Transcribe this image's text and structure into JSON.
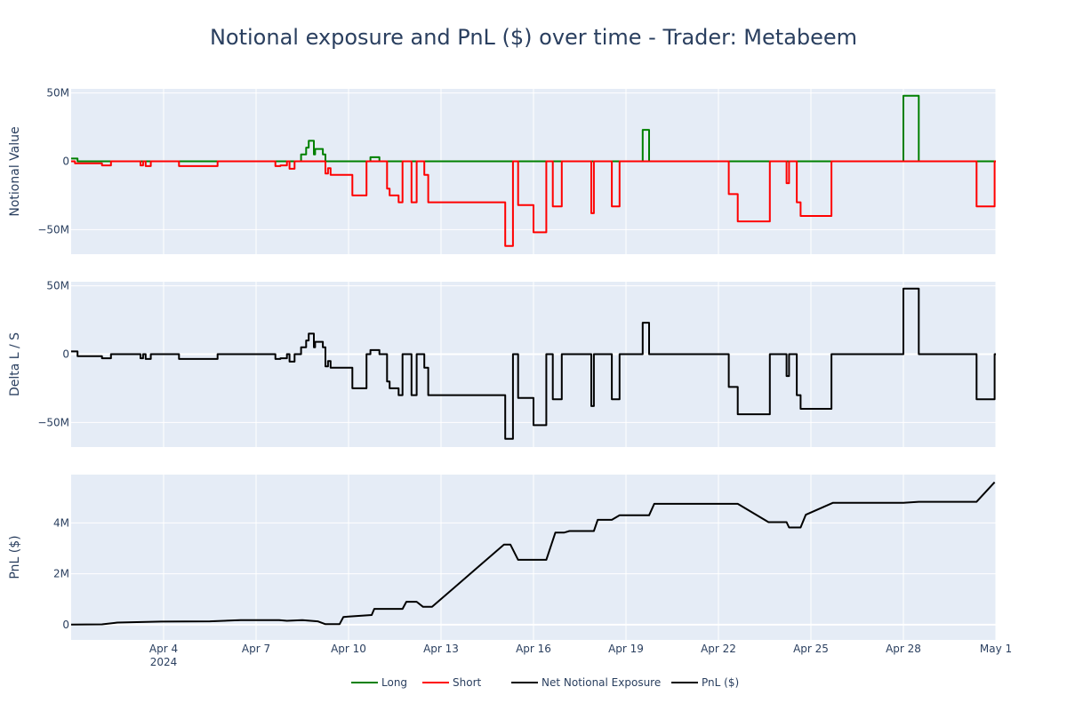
{
  "chart_data": {
    "type": "line",
    "title": "Notional exposure and PnL ($) over time - Trader: Metabeem",
    "x_range": [
      "2024-04-01T00:00",
      "2024-05-01T00:00"
    ],
    "x_ticks": [
      {
        "date": "2024-04-04",
        "label": "Apr 4",
        "sublabel": "2024"
      },
      {
        "date": "2024-04-07",
        "label": "Apr 7"
      },
      {
        "date": "2024-04-10",
        "label": "Apr 10"
      },
      {
        "date": "2024-04-13",
        "label": "Apr 13"
      },
      {
        "date": "2024-04-16",
        "label": "Apr 16"
      },
      {
        "date": "2024-04-19",
        "label": "Apr 19"
      },
      {
        "date": "2024-04-22",
        "label": "Apr 22"
      },
      {
        "date": "2024-04-25",
        "label": "Apr 25"
      },
      {
        "date": "2024-04-28",
        "label": "Apr 28"
      },
      {
        "date": "2024-05-01",
        "label": "May 1"
      }
    ],
    "grid": true,
    "legend_position": "bottom-center",
    "legend": [
      {
        "name": "Long",
        "color": "#008000"
      },
      {
        "name": "Short",
        "color": "#ff0000"
      },
      {
        "name": "Net Notional Exposure",
        "color": "#000000"
      },
      {
        "name": "PnL ($)",
        "color": "#000000"
      }
    ],
    "panels": [
      {
        "ylabel": "Notional Value",
        "ylim": [
          -68000000,
          53000000
        ],
        "y_ticks": [
          {
            "value": 50000000,
            "label": "50M"
          },
          {
            "value": 0,
            "label": "0"
          },
          {
            "value": -50000000,
            "label": "−50M"
          }
        ],
        "series": [
          {
            "name": "Long",
            "color": "#008000",
            "shape": "hv",
            "points": [
              [
                "2024-04-01T00:00",
                2000000
              ],
              [
                "2024-04-01T05:00",
                0
              ],
              [
                "2024-04-08T08:00",
                0
              ],
              [
                "2024-04-08T11:00",
                5000000
              ],
              [
                "2024-04-08T15:00",
                10000000
              ],
              [
                "2024-04-08T17:00",
                15000000
              ],
              [
                "2024-04-08T21:00",
                5000000
              ],
              [
                "2024-04-08T22:00",
                9000000
              ],
              [
                "2024-04-09T04:00",
                5000000
              ],
              [
                "2024-04-09T06:00",
                0
              ],
              [
                "2024-04-10T17:00",
                3000000
              ],
              [
                "2024-04-11T00:00",
                0
              ],
              [
                "2024-04-19T13:00",
                23000000
              ],
              [
                "2024-04-19T18:00",
                0
              ],
              [
                "2024-04-28T00:00",
                48000000
              ],
              [
                "2024-04-28T12:00",
                0
              ],
              [
                "2024-05-01T00:00",
                0
              ]
            ]
          },
          {
            "name": "Short",
            "color": "#ff0000",
            "shape": "hv",
            "points": [
              [
                "2024-04-01T00:00",
                0
              ],
              [
                "2024-04-01T03:00",
                -1500000
              ],
              [
                "2024-04-02T00:00",
                -3000000
              ],
              [
                "2024-04-02T07:00",
                0
              ],
              [
                "2024-04-03T06:00",
                -3000000
              ],
              [
                "2024-04-03T08:00",
                0
              ],
              [
                "2024-04-03T10:00",
                -3500000
              ],
              [
                "2024-04-03T14:00",
                0
              ],
              [
                "2024-04-04T12:00",
                -3500000
              ],
              [
                "2024-04-05T18:00",
                0
              ],
              [
                "2024-04-07T15:00",
                -3500000
              ],
              [
                "2024-04-07T19:00",
                -3000000
              ],
              [
                "2024-04-08T00:00",
                0
              ],
              [
                "2024-04-08T02:00",
                -5500000
              ],
              [
                "2024-04-08T06:00",
                0
              ],
              [
                "2024-04-09T06:00",
                -9000000
              ],
              [
                "2024-04-09T08:00",
                -5000000
              ],
              [
                "2024-04-09T10:00",
                -10000000
              ],
              [
                "2024-04-10T03:00",
                -25000000
              ],
              [
                "2024-04-10T14:00",
                0
              ],
              [
                "2024-04-11T06:00",
                -20000000
              ],
              [
                "2024-04-11T08:00",
                -25000000
              ],
              [
                "2024-04-11T15:00",
                -30000000
              ],
              [
                "2024-04-11T18:00",
                0
              ],
              [
                "2024-04-12T01:00",
                -30000000
              ],
              [
                "2024-04-12T05:00",
                0
              ],
              [
                "2024-04-12T11:00",
                -10000000
              ],
              [
                "2024-04-12T14:00",
                -30000000
              ],
              [
                "2024-04-15T02:00",
                -62000000
              ],
              [
                "2024-04-15T08:00",
                0
              ],
              [
                "2024-04-15T12:00",
                -32000000
              ],
              [
                "2024-04-16T00:00",
                -52000000
              ],
              [
                "2024-04-16T10:00",
                0
              ],
              [
                "2024-04-16T15:00",
                -33000000
              ],
              [
                "2024-04-16T22:00",
                0
              ],
              [
                "2024-04-17T21:00",
                -38000000
              ],
              [
                "2024-04-17T23:00",
                0
              ],
              [
                "2024-04-18T13:00",
                -33000000
              ],
              [
                "2024-04-18T19:00",
                0
              ],
              [
                "2024-04-22T08:00",
                -24000000
              ],
              [
                "2024-04-22T15:00",
                -44000000
              ],
              [
                "2024-04-23T16:00",
                0
              ],
              [
                "2024-04-24T05:00",
                -16000000
              ],
              [
                "2024-04-24T07:00",
                0
              ],
              [
                "2024-04-24T13:00",
                -30000000
              ],
              [
                "2024-04-24T16:00",
                -40000000
              ],
              [
                "2024-04-25T16:00",
                0
              ],
              [
                "2024-04-30T09:00",
                -33000000
              ],
              [
                "2024-04-30T23:00",
                0
              ],
              [
                "2024-05-01T00:00",
                0
              ]
            ]
          }
        ]
      },
      {
        "ylabel": "Delta L / S",
        "ylim": [
          -68000000,
          53000000
        ],
        "y_ticks": [
          {
            "value": 50000000,
            "label": "50M"
          },
          {
            "value": 0,
            "label": "0"
          },
          {
            "value": -50000000,
            "label": "−50M"
          }
        ],
        "series": [
          {
            "name": "Net Notional Exposure",
            "color": "#000000",
            "shape": "hv",
            "points": [
              [
                "2024-04-01T00:00",
                2000000
              ],
              [
                "2024-04-01T05:00",
                -1500000
              ],
              [
                "2024-04-02T00:00",
                -3000000
              ],
              [
                "2024-04-02T07:00",
                0
              ],
              [
                "2024-04-03T06:00",
                -3000000
              ],
              [
                "2024-04-03T08:00",
                0
              ],
              [
                "2024-04-03T10:00",
                -3500000
              ],
              [
                "2024-04-03T14:00",
                0
              ],
              [
                "2024-04-04T12:00",
                -3500000
              ],
              [
                "2024-04-05T18:00",
                0
              ],
              [
                "2024-04-07T15:00",
                -3500000
              ],
              [
                "2024-04-07T19:00",
                -3000000
              ],
              [
                "2024-04-08T00:00",
                0
              ],
              [
                "2024-04-08T02:00",
                -5500000
              ],
              [
                "2024-04-08T06:00",
                0
              ],
              [
                "2024-04-08T08:00",
                0
              ],
              [
                "2024-04-08T11:00",
                5000000
              ],
              [
                "2024-04-08T15:00",
                10000000
              ],
              [
                "2024-04-08T17:00",
                15000000
              ],
              [
                "2024-04-08T21:00",
                5000000
              ],
              [
                "2024-04-08T22:00",
                9000000
              ],
              [
                "2024-04-09T04:00",
                5000000
              ],
              [
                "2024-04-09T06:00",
                -9000000
              ],
              [
                "2024-04-09T08:00",
                -5000000
              ],
              [
                "2024-04-09T10:00",
                -10000000
              ],
              [
                "2024-04-10T03:00",
                -25000000
              ],
              [
                "2024-04-10T14:00",
                0
              ],
              [
                "2024-04-10T17:00",
                3000000
              ],
              [
                "2024-04-11T00:00",
                0
              ],
              [
                "2024-04-11T06:00",
                -20000000
              ],
              [
                "2024-04-11T08:00",
                -25000000
              ],
              [
                "2024-04-11T15:00",
                -30000000
              ],
              [
                "2024-04-11T18:00",
                0
              ],
              [
                "2024-04-12T01:00",
                -30000000
              ],
              [
                "2024-04-12T05:00",
                0
              ],
              [
                "2024-04-12T11:00",
                -10000000
              ],
              [
                "2024-04-12T14:00",
                -30000000
              ],
              [
                "2024-04-15T02:00",
                -62000000
              ],
              [
                "2024-04-15T08:00",
                0
              ],
              [
                "2024-04-15T12:00",
                -32000000
              ],
              [
                "2024-04-16T00:00",
                -52000000
              ],
              [
                "2024-04-16T10:00",
                0
              ],
              [
                "2024-04-16T15:00",
                -33000000
              ],
              [
                "2024-04-16T22:00",
                0
              ],
              [
                "2024-04-17T21:00",
                -38000000
              ],
              [
                "2024-04-17T23:00",
                0
              ],
              [
                "2024-04-18T13:00",
                -33000000
              ],
              [
                "2024-04-18T19:00",
                0
              ],
              [
                "2024-04-19T13:00",
                23000000
              ],
              [
                "2024-04-19T18:00",
                0
              ],
              [
                "2024-04-22T08:00",
                -24000000
              ],
              [
                "2024-04-22T15:00",
                -44000000
              ],
              [
                "2024-04-23T16:00",
                0
              ],
              [
                "2024-04-24T05:00",
                -16000000
              ],
              [
                "2024-04-24T07:00",
                0
              ],
              [
                "2024-04-24T13:00",
                -30000000
              ],
              [
                "2024-04-24T16:00",
                -40000000
              ],
              [
                "2024-04-25T16:00",
                0
              ],
              [
                "2024-04-28T00:00",
                48000000
              ],
              [
                "2024-04-28T12:00",
                0
              ],
              [
                "2024-04-30T09:00",
                -33000000
              ],
              [
                "2024-04-30T23:00",
                0
              ],
              [
                "2024-05-01T00:00",
                0
              ]
            ]
          }
        ]
      },
      {
        "ylabel": "PnL ($)",
        "ylim": [
          -600000,
          5900000
        ],
        "y_ticks": [
          {
            "value": 4000000,
            "label": "4M"
          },
          {
            "value": 2000000,
            "label": "2M"
          },
          {
            "value": 0,
            "label": "0"
          }
        ],
        "series": [
          {
            "name": "PnL ($)",
            "color": "#000000",
            "shape": "linear",
            "points": [
              [
                "2024-04-01T00:00",
                0
              ],
              [
                "2024-04-02T00:00",
                10000
              ],
              [
                "2024-04-02T12:00",
                80000
              ],
              [
                "2024-04-03T22:00",
                120000
              ],
              [
                "2024-04-05T12:00",
                130000
              ],
              [
                "2024-04-06T12:00",
                180000
              ],
              [
                "2024-04-07T18:00",
                180000
              ],
              [
                "2024-04-08T00:00",
                150000
              ],
              [
                "2024-04-08T12:00",
                180000
              ],
              [
                "2024-04-09T00:00",
                130000
              ],
              [
                "2024-04-09T06:00",
                20000
              ],
              [
                "2024-04-09T17:00",
                20000
              ],
              [
                "2024-04-09T20:00",
                300000
              ],
              [
                "2024-04-10T00:00",
                320000
              ],
              [
                "2024-04-10T18:00",
                380000
              ],
              [
                "2024-04-10T20:00",
                620000
              ],
              [
                "2024-04-11T18:00",
                620000
              ],
              [
                "2024-04-11T21:00",
                900000
              ],
              [
                "2024-04-12T05:00",
                900000
              ],
              [
                "2024-04-12T10:00",
                700000
              ],
              [
                "2024-04-12T17:00",
                700000
              ],
              [
                "2024-04-15T01:00",
                3150000
              ],
              [
                "2024-04-15T06:00",
                3150000
              ],
              [
                "2024-04-15T12:00",
                2550000
              ],
              [
                "2024-04-16T10:00",
                2550000
              ],
              [
                "2024-04-16T17:00",
                3620000
              ],
              [
                "2024-04-17T00:00",
                3620000
              ],
              [
                "2024-04-17T04:00",
                3680000
              ],
              [
                "2024-04-17T23:00",
                3680000
              ],
              [
                "2024-04-18T02:00",
                4120000
              ],
              [
                "2024-04-18T13:00",
                4120000
              ],
              [
                "2024-04-18T19:00",
                4300000
              ],
              [
                "2024-04-19T18:00",
                4300000
              ],
              [
                "2024-04-19T22:00",
                4750000
              ],
              [
                "2024-04-22T15:00",
                4750000
              ],
              [
                "2024-04-23T15:00",
                4030000
              ],
              [
                "2024-04-24T05:00",
                4030000
              ],
              [
                "2024-04-24T07:00",
                3820000
              ],
              [
                "2024-04-24T16:00",
                3820000
              ],
              [
                "2024-04-24T20:00",
                4320000
              ],
              [
                "2024-04-25T17:00",
                4790000
              ],
              [
                "2024-04-28T00:00",
                4790000
              ],
              [
                "2024-04-28T12:00",
                4830000
              ],
              [
                "2024-04-30T09:00",
                4830000
              ],
              [
                "2024-04-30T23:00",
                5600000
              ]
            ]
          }
        ]
      }
    ]
  }
}
